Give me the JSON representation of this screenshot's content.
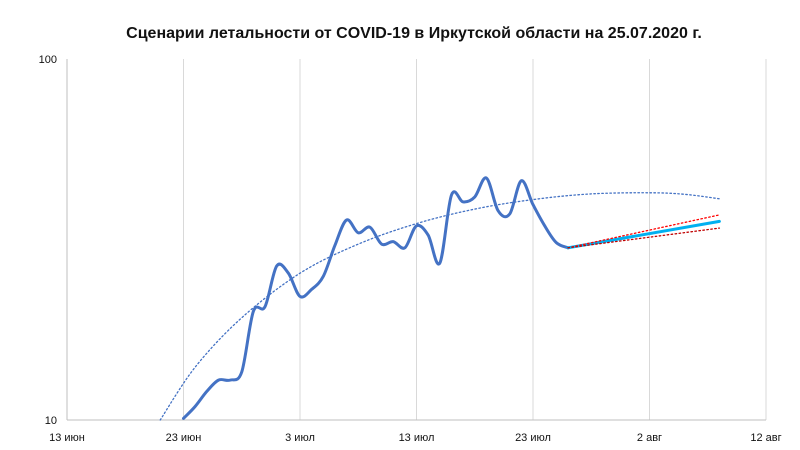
{
  "chart_data": {
    "type": "line",
    "title": "Сценарии летальности от COVID-19 в Иркутской области  на 25.07.2020 г.",
    "y_scale": "log",
    "ylim": [
      10,
      100
    ],
    "y_ticks": [
      "10",
      "100"
    ],
    "x_ticks": [
      "13 июн",
      "23 июн",
      "3 июл",
      "13 июл",
      "23 июл",
      "2 авг",
      "12 авг"
    ],
    "xlim": [
      "2020-06-13",
      "2020-08-12"
    ],
    "grid": "vertical",
    "legend": "none",
    "series": [
      {
        "color": "#4472c4",
        "style": "solid",
        "points": [
          [
            "2020-06-23",
            10.1
          ],
          [
            "2020-06-24",
            10.9
          ],
          [
            "2020-06-25",
            12.0
          ],
          [
            "2020-06-26",
            12.9
          ],
          [
            "2020-06-27",
            12.9
          ],
          [
            "2020-06-28",
            13.6
          ],
          [
            "2020-06-29",
            20.0
          ],
          [
            "2020-06-30",
            20.6
          ],
          [
            "2020-07-01",
            26.7
          ],
          [
            "2020-07-02",
            25.5
          ],
          [
            "2020-07-03",
            22.0
          ],
          [
            "2020-07-04",
            23.0
          ],
          [
            "2020-07-05",
            25.0
          ],
          [
            "2020-07-06",
            30.5
          ],
          [
            "2020-07-07",
            35.8
          ],
          [
            "2020-07-08",
            33.0
          ],
          [
            "2020-07-09",
            34.2
          ],
          [
            "2020-07-10",
            30.7
          ],
          [
            "2020-07-11",
            31.2
          ],
          [
            "2020-07-12",
            30.0
          ],
          [
            "2020-07-13",
            34.5
          ],
          [
            "2020-07-14",
            32.5
          ],
          [
            "2020-07-15",
            27.2
          ],
          [
            "2020-07-16",
            42.0
          ],
          [
            "2020-07-17",
            40.2
          ],
          [
            "2020-07-18",
            41.5
          ],
          [
            "2020-07-19",
            46.8
          ],
          [
            "2020-07-20",
            38.0
          ],
          [
            "2020-07-21",
            37.2
          ],
          [
            "2020-07-22",
            46.0
          ],
          [
            "2020-07-23",
            39.5
          ],
          [
            "2020-07-24",
            34.5
          ],
          [
            "2020-07-25",
            31.0
          ],
          [
            "2020-07-26",
            30.0
          ]
        ]
      },
      {
        "color": "#4472c4",
        "style": "dotted",
        "points": [
          [
            "2020-06-21",
            10.0
          ],
          [
            "2020-06-24",
            14.0
          ],
          [
            "2020-06-28",
            19.2
          ],
          [
            "2020-07-03",
            25.5
          ],
          [
            "2020-07-08",
            30.7
          ],
          [
            "2020-07-13",
            35.0
          ],
          [
            "2020-07-18",
            38.4
          ],
          [
            "2020-07-23",
            40.8
          ],
          [
            "2020-07-28",
            42.3
          ],
          [
            "2020-08-02",
            42.6
          ],
          [
            "2020-08-05",
            42.2
          ],
          [
            "2020-08-08",
            41.0
          ]
        ]
      },
      {
        "color": "#00b0f0",
        "style": "solid",
        "points": [
          [
            "2020-07-26",
            30.0
          ],
          [
            "2020-08-08",
            35.5
          ]
        ]
      },
      {
        "color": "#ff0000",
        "style": "dotted",
        "points": [
          [
            "2020-07-26",
            30.0
          ],
          [
            "2020-08-08",
            37.0
          ]
        ]
      },
      {
        "color": "#c00000",
        "style": "dotted",
        "points": [
          [
            "2020-07-26",
            30.0
          ],
          [
            "2020-08-08",
            34.0
          ]
        ]
      }
    ]
  }
}
